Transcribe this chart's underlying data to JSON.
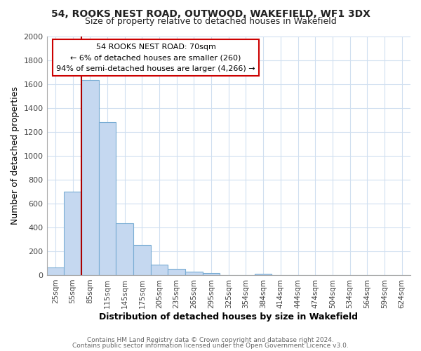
{
  "title": "54, ROOKS NEST ROAD, OUTWOOD, WAKEFIELD, WF1 3DX",
  "subtitle": "Size of property relative to detached houses in Wakefield",
  "xlabel": "Distribution of detached houses by size in Wakefield",
  "ylabel": "Number of detached properties",
  "bar_labels": [
    "25sqm",
    "55sqm",
    "85sqm",
    "115sqm",
    "145sqm",
    "175sqm",
    "205sqm",
    "235sqm",
    "265sqm",
    "295sqm",
    "325sqm",
    "354sqm",
    "384sqm",
    "414sqm",
    "444sqm",
    "474sqm",
    "504sqm",
    "534sqm",
    "564sqm",
    "594sqm",
    "624sqm"
  ],
  "bar_values": [
    65,
    700,
    1630,
    1280,
    435,
    250,
    88,
    52,
    30,
    20,
    0,
    0,
    12,
    0,
    0,
    0,
    0,
    0,
    0,
    0,
    0
  ],
  "bar_color": "#c5d8f0",
  "bar_edge_color": "#7aadd4",
  "ylim": [
    0,
    2000
  ],
  "yticks": [
    0,
    200,
    400,
    600,
    800,
    1000,
    1200,
    1400,
    1600,
    1800,
    2000
  ],
  "property_line_color": "#aa0000",
  "annotation_title": "54 ROOKS NEST ROAD: 70sqm",
  "annotation_line1": "← 6% of detached houses are smaller (260)",
  "annotation_line2": "94% of semi-detached houses are larger (4,266) →",
  "annotation_box_color": "#ffffff",
  "annotation_box_edge": "#cc0000",
  "footer1": "Contains HM Land Registry data © Crown copyright and database right 2024.",
  "footer2": "Contains public sector information licensed under the Open Government Licence v3.0.",
  "bg_color": "#ffffff",
  "grid_color": "#d0dff0"
}
